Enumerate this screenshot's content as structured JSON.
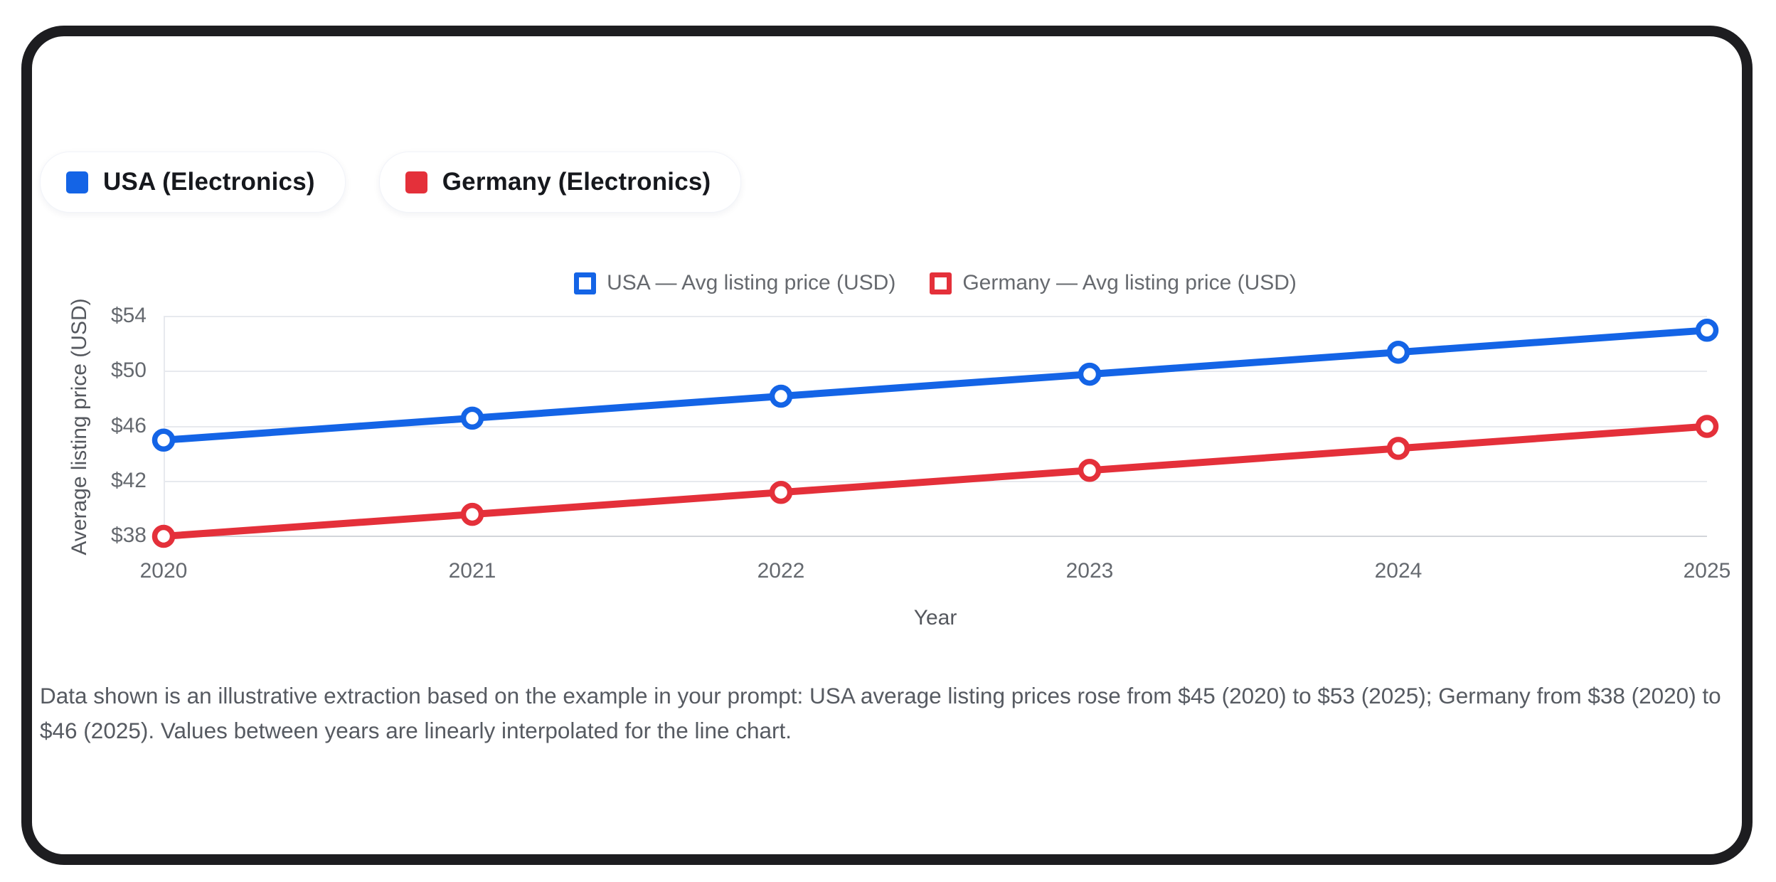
{
  "legend_chips": {
    "items": [
      {
        "label": "USA (Electronics)",
        "color": "#1464e6"
      },
      {
        "label": "Germany (Electronics)",
        "color": "#e4303a"
      }
    ]
  },
  "chart_data": {
    "type": "line",
    "x": [
      2020,
      2021,
      2022,
      2023,
      2024,
      2025
    ],
    "xtick_labels": [
      "2020",
      "2021",
      "2022",
      "2023",
      "2024",
      "2025"
    ],
    "series": [
      {
        "name": "USA — Avg listing price (USD)",
        "color": "#1464e6",
        "values": [
          45,
          46.6,
          48.2,
          49.8,
          51.4,
          53
        ]
      },
      {
        "name": "Germany — Avg listing price (USD)",
        "color": "#e4303a",
        "values": [
          38,
          39.6,
          41.2,
          42.8,
          44.4,
          46
        ]
      }
    ],
    "xlabel": "Year",
    "ylabel": "Average listing price (USD)",
    "ylim": [
      38,
      54
    ],
    "yticks": [
      38,
      42,
      46,
      50,
      54
    ],
    "ytick_labels": [
      "$38",
      "$42",
      "$46",
      "$50",
      "$54"
    ],
    "grid": true,
    "legend_position": "top-center",
    "point_style": "ring",
    "interpolation": "linear"
  },
  "caption": "Data shown is an illustrative extraction based on the example in your prompt: USA average listing prices rose from $45 (2020) to $53 (2025); Germany from $38 (2020) to $46 (2025). Values between years are linearly interpolated for the line chart.",
  "colors": {
    "usa_blue": "#1464e6",
    "germany_red": "#e4303a",
    "grid_line": "#e7e9ee",
    "axis_line": "#d2d5da",
    "tick_text": "#65696f",
    "axis_title_text": "#55585e",
    "caption_text": "#565a61",
    "frame_black": "#1d1d20",
    "chip_text": "#16181d",
    "background": "#ffffff"
  }
}
